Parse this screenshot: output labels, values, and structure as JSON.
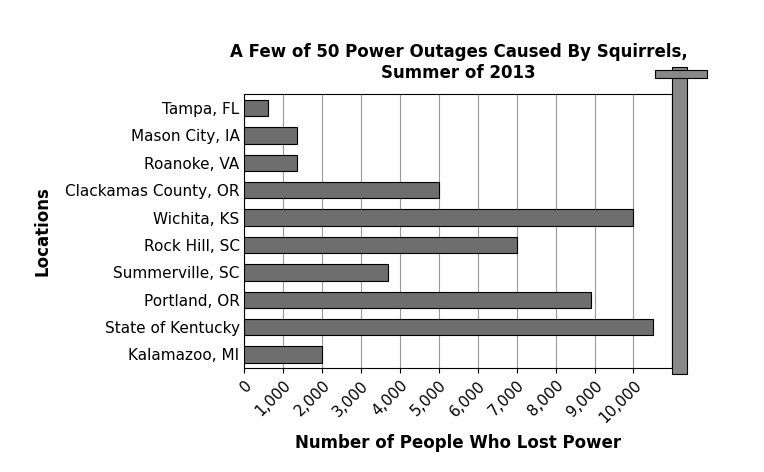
{
  "chart_data": {
    "type": "bar",
    "orientation": "horizontal",
    "title": "A Few of 50 Power Outages Caused By Squirrels,\nSummer of 2013",
    "x_label": "Number of People Who Lost Power",
    "y_label": "Locations",
    "categories": [
      "Tampa, FL",
      "Mason City, IA",
      "Roanoke, VA",
      "Clackamas County, OR",
      "Wichita, KS",
      "Rock Hill, SC",
      "Summerville, SC",
      "Portland, OR",
      "State of Kentucky",
      "Kalamazoo, MI"
    ],
    "values": [
      600,
      1350,
      1350,
      5000,
      10000,
      7000,
      3700,
      8900,
      10500,
      2000
    ],
    "color": "#6e6e6e",
    "xlim": [
      0,
      11000
    ],
    "xticks": [
      0,
      {
        "value": 1000,
        "label": "1,000"
      },
      {
        "value": 2000,
        "label": "2,000"
      },
      {
        "value": 3000,
        "label": "3,000"
      },
      {
        "value": 4000,
        "label": "4,000"
      },
      {
        "value": 5000,
        "label": "5,000"
      },
      {
        "value": 6000,
        "label": "6,000"
      },
      {
        "value": 7000,
        "label": "7,000"
      },
      {
        "value": 8000,
        "label": "8,000"
      },
      {
        "value": 9000,
        "label": "9,000"
      },
      {
        "value": 10000,
        "label": "10,000"
      }
    ],
    "grid": true
  }
}
